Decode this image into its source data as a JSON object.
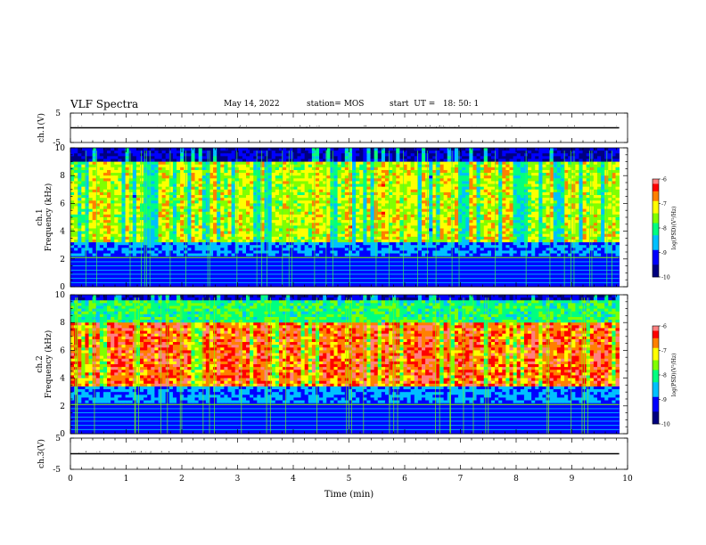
{
  "header": {
    "title": "VLF Spectra",
    "date": "May 14, 2022",
    "station": "station= MOS",
    "start": "start  UT =   18: 50: 1"
  },
  "chart_data": [
    {
      "type": "line",
      "panel": "ch1-waveform",
      "ylabel": "ch.1(V)",
      "ylim": [
        -5,
        5
      ],
      "yticks": [
        5,
        -5
      ],
      "x_range": [
        0,
        10
      ],
      "x_data_end": 9.85,
      "trace_level": 0,
      "trace_note_values": "flat trace near 0 V"
    },
    {
      "type": "heatmap",
      "panel": "ch1-spectrogram",
      "ylabel": "ch.1 Frequency (kHz)",
      "ylabel_line1": "ch.1",
      "ylabel_line2": "Frequency (kHz)",
      "ylim": [
        0,
        10
      ],
      "yticks": [
        0,
        2,
        4,
        6,
        8,
        10
      ],
      "x_range": [
        0,
        10
      ],
      "x_data_end": 9.85,
      "colorbar": {
        "label": "log(PSD)(V²/Hz)",
        "ticks": [
          -6,
          -7,
          -8,
          -9,
          -10
        ],
        "range": [
          -10,
          -6
        ]
      },
      "band_upper_khz": 9.0,
      "intense_band_khz": [
        3.3,
        9.0
      ]
    },
    {
      "type": "heatmap",
      "panel": "ch2-spectrogram",
      "ylabel": "ch.2 Frequency (kHz)",
      "ylabel_line1": "ch.2",
      "ylabel_line2": "Frequency (kHz)",
      "ylim": [
        0,
        10
      ],
      "yticks": [
        0,
        2,
        4,
        6,
        8,
        10
      ],
      "x_range": [
        0,
        10
      ],
      "x_data_end": 9.85,
      "colorbar": {
        "label": "log(PSD)(V²/Hz)",
        "ticks": [
          -6,
          -7,
          -8,
          -9,
          -10
        ],
        "range": [
          -10,
          -6
        ]
      },
      "band_upper_khz": 9.5,
      "intense_band_khz": [
        3.5,
        8.0
      ]
    },
    {
      "type": "line",
      "panel": "ch3-waveform",
      "ylabel": "ch.3(V)",
      "ylim": [
        -5,
        5
      ],
      "yticks": [
        5,
        -5
      ],
      "x_range": [
        0,
        10
      ],
      "x_data_end": 9.85,
      "trace_level": 0
    }
  ],
  "xaxis": {
    "label": "Time (min)",
    "ticks": [
      0,
      1,
      2,
      3,
      4,
      5,
      6,
      7,
      8,
      9,
      10
    ]
  },
  "colors": {
    "scale": [
      "#00007f",
      "#0000ff",
      "#00c0ff",
      "#00ff80",
      "#80ff00",
      "#ffff00",
      "#ff8000",
      "#ff0000",
      "#ff8080",
      "#ffffff"
    ],
    "background": "#000000"
  }
}
